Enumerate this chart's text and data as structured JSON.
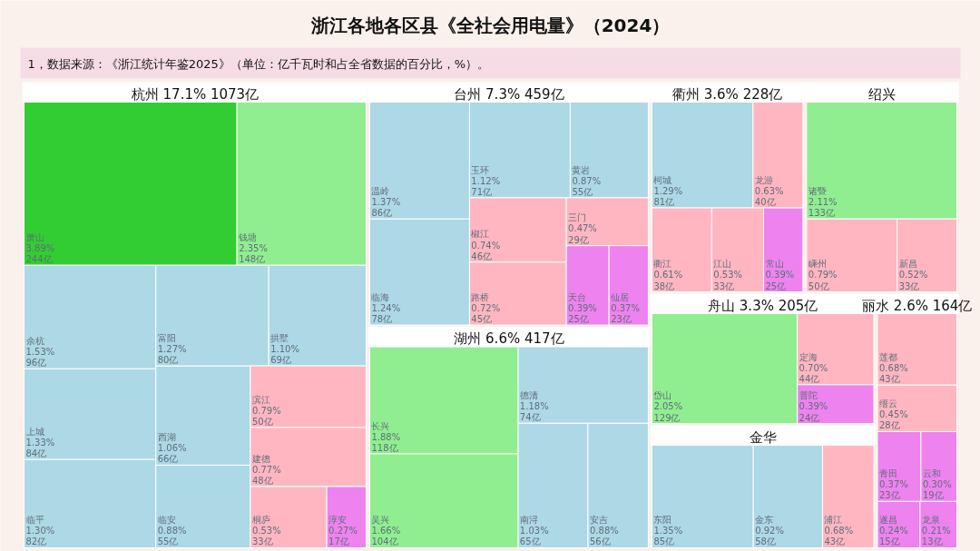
{
  "chart_data": [
    {
      "type": "other",
      "title": "浙江各地各区县《全社会用电量》（2024）",
      "subtitle": "1，数据来源：《浙江统计年鉴2025》（单位：亿千瓦时和占全省数据的百分比，%）。"
    },
    {
      "type": "other",
      "title": "杭州",
      "annotations": [
        "17.1%",
        "1073亿"
      ],
      "categories": [
        "临平",
        "上城",
        "余杭",
        "临安",
        "西湖",
        "富阳",
        "拱墅",
        "桐庐",
        "淳安",
        "建德",
        "滨江",
        "萧山",
        "钱塘"
      ],
      "values": [
        82,
        84,
        96,
        55,
        66,
        80,
        69,
        33,
        17,
        48,
        50,
        244,
        148
      ],
      "value_labels": [
        "1.30%\n82亿",
        "1.33%\n84亿",
        "1.53%\n96亿",
        "0.88%\n55亿",
        "1.06%\n66亿",
        "1.27%\n80亿",
        "1.10%\n69亿",
        "0.53%\n33亿",
        "0.27%\n17亿",
        "0.77%\n48亿",
        "0.79%\n50亿",
        "3.89%\n244亿",
        "2.35%\n148亿"
      ],
      "colors": [
        "#add8e6",
        "#add8e6",
        "#add8e6",
        "#add8e6",
        "#add8e6",
        "#add8e6",
        "#add8e6",
        "#ffb6c1",
        "#ee82ee",
        "#ffb6c1",
        "#ffb6c1",
        "#32cd32",
        "#90ee90"
      ]
    },
    {
      "type": "other",
      "title": "台州",
      "annotations": [
        "7.3%",
        "459亿"
      ],
      "categories": [
        "路桥",
        "天台",
        "仙居",
        "椒江",
        "三门",
        "玉环",
        "黄岩",
        "温岭",
        "临海"
      ],
      "values": [
        45,
        25,
        23,
        46,
        29,
        71,
        55,
        86,
        78
      ],
      "value_labels": [
        "0.72%\n45亿",
        "0.39%\n25亿",
        "0.37%\n23亿",
        "0.74%\n46亿",
        "0.47%\n29亿",
        "1.12%\n71亿",
        "0.87%\n55亿",
        "1.37%\n86亿",
        "1.24%\n78亿"
      ],
      "colors": [
        "#ffb6c1",
        "#ee82ee",
        "#ee82ee",
        "#ffb6c1",
        "#ffb6c1",
        "#add8e6",
        "#add8e6",
        "#add8e6",
        "#add8e6"
      ]
    },
    {
      "type": "other",
      "title": "湖州",
      "annotations": [
        "6.6%",
        "417亿"
      ],
      "categories": [
        "南浔",
        "安吉",
        "吴兴",
        "德清",
        "长兴"
      ],
      "values": [
        65,
        56,
        104,
        74,
        118
      ],
      "value_labels": [
        "1.03%\n65亿",
        "0.88%\n56亿",
        "1.66%\n104亿",
        "1.18%\n74亿",
        "1.88%\n118亿"
      ],
      "colors": [
        "#add8e6",
        "#add8e6",
        "#90ee90",
        "#add8e6",
        "#90ee90"
      ]
    },
    {
      "type": "other",
      "title": "舟山",
      "annotations": [
        "3.3%",
        "205亿"
      ],
      "categories": [
        "定海",
        "普陀",
        "岱山"
      ],
      "values": [
        44,
        24,
        129
      ],
      "value_labels": [
        "0.70%\n44亿",
        "0.39%\n24亿",
        "2.05%\n129亿"
      ],
      "colors": [
        "#ffb6c1",
        "#ee82ee",
        "#90ee90"
      ]
    },
    {
      "type": "other",
      "title": "丽水",
      "annotations": [
        "2.6%",
        "164亿"
      ],
      "categories": [
        "遂昌",
        "龙泉",
        "青田",
        "云和",
        "莲都",
        "缙云"
      ],
      "values": [
        15,
        13,
        23,
        19,
        43,
        28
      ],
      "value_labels": [
        "0.24%\n15亿",
        "0.21%\n13亿",
        "0.37%\n23亿",
        "0.30%\n19亿",
        "0.68%\n43亿",
        "0.45%\n28亿"
      ],
      "colors": [
        "#ee82ee",
        "#ee82ee",
        "#ee82ee",
        "#ee82ee",
        "#ffb6c1",
        "#ffb6c1"
      ]
    },
    {
      "type": "other",
      "title": "衢州",
      "annotations": [
        "3.6%",
        "228亿"
      ],
      "categories": [
        "柯城",
        "衢江",
        "龙游",
        "常山",
        "江山"
      ],
      "values": [
        81,
        38,
        40,
        25,
        33
      ],
      "value_labels": [
        "1.29%\n81亿",
        "0.61%\n38亿",
        "0.63%\n40亿",
        "0.39%\n25亿",
        "0.53%\n33亿"
      ],
      "colors": [
        "#add8e6",
        "#ffb6c1",
        "#ffb6c1",
        "#ee82ee",
        "#ffb6c1"
      ]
    },
    {
      "type": "other",
      "title": "金华",
      "categories": [
        "东阳",
        "金东",
        "浦江"
      ],
      "values": [
        85,
        58,
        43
      ],
      "value_labels": [
        "1.35%\n85亿",
        "0.92%\n58亿",
        "0.68%\n43亿"
      ],
      "colors": [
        "#add8e6",
        "#add8e6",
        "#ffb6c1"
      ]
    },
    {
      "type": "other",
      "title": "绍兴",
      "categories": [
        "诸暨",
        "嵊州",
        "新昌"
      ],
      "values": [
        133,
        50,
        33
      ],
      "value_labels": [
        "2.11%\n133亿",
        "0.79%\n50亿",
        "0.52%\n33亿"
      ],
      "colors": [
        "#90ee90",
        "#ffb6c1",
        "#ffb6c1"
      ]
    }
  ]
}
